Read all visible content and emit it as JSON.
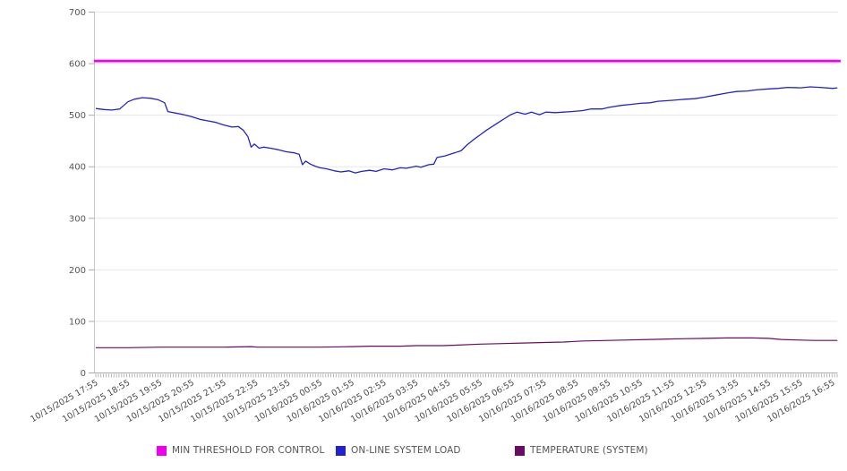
{
  "chart_data": {
    "type": "line",
    "title": "",
    "x_unit": "hours since 10/15/2025 17:55",
    "x_axis": {
      "tick_labels": [
        "10/15/2025 17:55",
        "10/15/2025 18:55",
        "10/15/2025 19:55",
        "10/15/2025 20:55",
        "10/15/2025 21:55",
        "10/15/2025 22:55",
        "10/15/2025 23:55",
        "10/16/2025 00:55",
        "10/16/2025 01:55",
        "10/16/2025 02:55",
        "10/16/2025 03:55",
        "10/16/2025 04:55",
        "10/16/2025 05:55",
        "10/16/2025 06:55",
        "10/16/2025 07:55",
        "10/16/2025 08:55",
        "10/16/2025 09:55",
        "10/16/2025 10:55",
        "10/16/2025 11:55",
        "10/16/2025 12:55",
        "10/16/2025 13:55",
        "10/16/2025 14:55",
        "10/16/2025 15:55",
        "10/16/2025 16:55"
      ]
    },
    "y_axis": {
      "min": 0,
      "max": 700,
      "tick_interval": 100,
      "tick_labels": [
        "0",
        "100",
        "200",
        "300",
        "400",
        "500",
        "600",
        "700"
      ]
    },
    "grid": "horizontal",
    "legend_position": "bottom",
    "series": [
      {
        "name": "MIN THRESHOLD FOR CONTROL",
        "color": "#EE00EE",
        "style": "threshold",
        "line_width": 2.4,
        "points": [
          [
            -0.06,
            605
          ],
          [
            23.25,
            605
          ]
        ]
      },
      {
        "name": "ON-LINE SYSTEM LOAD",
        "color": "#2323CC",
        "style": "line",
        "line_width": 1.3,
        "points": [
          [
            0,
            513
          ],
          [
            0.25,
            511
          ],
          [
            0.5,
            510
          ],
          [
            0.75,
            512
          ],
          [
            1,
            526
          ],
          [
            1.2,
            531
          ],
          [
            1.45,
            534
          ],
          [
            1.7,
            533
          ],
          [
            1.95,
            530
          ],
          [
            2.15,
            524
          ],
          [
            2.25,
            507
          ],
          [
            2.5,
            504
          ],
          [
            2.75,
            501
          ],
          [
            3,
            497
          ],
          [
            3.25,
            492
          ],
          [
            3.5,
            489
          ],
          [
            3.75,
            486
          ],
          [
            4,
            481
          ],
          [
            4.25,
            477
          ],
          [
            4.45,
            478
          ],
          [
            4.6,
            471
          ],
          [
            4.75,
            458
          ],
          [
            4.85,
            438
          ],
          [
            4.95,
            444
          ],
          [
            5.1,
            436
          ],
          [
            5.25,
            438
          ],
          [
            5.45,
            436
          ],
          [
            5.7,
            433
          ],
          [
            5.95,
            429
          ],
          [
            6.2,
            427
          ],
          [
            6.35,
            424
          ],
          [
            6.45,
            404
          ],
          [
            6.55,
            411
          ],
          [
            6.7,
            405
          ],
          [
            6.85,
            401
          ],
          [
            7,
            398
          ],
          [
            7.2,
            396
          ],
          [
            7.45,
            392
          ],
          [
            7.65,
            390
          ],
          [
            7.9,
            392
          ],
          [
            8.1,
            388
          ],
          [
            8.3,
            391
          ],
          [
            8.55,
            393
          ],
          [
            8.75,
            391
          ],
          [
            9,
            396
          ],
          [
            9.25,
            394
          ],
          [
            9.5,
            398
          ],
          [
            9.7,
            397
          ],
          [
            10,
            401
          ],
          [
            10.15,
            399
          ],
          [
            10.4,
            404
          ],
          [
            10.55,
            405
          ],
          [
            10.65,
            418
          ],
          [
            10.9,
            421
          ],
          [
            11.15,
            426
          ],
          [
            11.4,
            431
          ],
          [
            11.6,
            443
          ],
          [
            11.8,
            453
          ],
          [
            12,
            462
          ],
          [
            12.2,
            471
          ],
          [
            12.4,
            479
          ],
          [
            12.6,
            487
          ],
          [
            12.8,
            495
          ],
          [
            12.95,
            501
          ],
          [
            13.15,
            506
          ],
          [
            13.4,
            502
          ],
          [
            13.6,
            506
          ],
          [
            13.85,
            501
          ],
          [
            14.05,
            506
          ],
          [
            14.35,
            505
          ],
          [
            14.6,
            506
          ],
          [
            14.85,
            507
          ],
          [
            15.2,
            509
          ],
          [
            15.45,
            512
          ],
          [
            15.8,
            512
          ],
          [
            16,
            515
          ],
          [
            16.4,
            519
          ],
          [
            16.7,
            521
          ],
          [
            17,
            523
          ],
          [
            17.3,
            524
          ],
          [
            17.55,
            527
          ],
          [
            17.8,
            528
          ],
          [
            18,
            529
          ],
          [
            18.4,
            531
          ],
          [
            18.7,
            532
          ],
          [
            19,
            535
          ],
          [
            19.35,
            539
          ],
          [
            19.7,
            543
          ],
          [
            20,
            546
          ],
          [
            20.35,
            547
          ],
          [
            20.6,
            549
          ],
          [
            21,
            551
          ],
          [
            21.3,
            552
          ],
          [
            21.6,
            554
          ],
          [
            22,
            553
          ],
          [
            22.3,
            555
          ],
          [
            22.6,
            554
          ],
          [
            23,
            552
          ],
          [
            23.15,
            553
          ]
        ]
      },
      {
        "name": "TEMPERATURE (SYSTEM)",
        "color": "#6B0B63",
        "style": "line",
        "line_width": 1.2,
        "points": [
          [
            0,
            49
          ],
          [
            1,
            49
          ],
          [
            2,
            50
          ],
          [
            3,
            50
          ],
          [
            4,
            50
          ],
          [
            4.85,
            51
          ],
          [
            5.05,
            50
          ],
          [
            6,
            50
          ],
          [
            7,
            50
          ],
          [
            8,
            51
          ],
          [
            8.55,
            52
          ],
          [
            9.5,
            52
          ],
          [
            10,
            53
          ],
          [
            10.8,
            53
          ],
          [
            11.3,
            54
          ],
          [
            12,
            56
          ],
          [
            12.7,
            57
          ],
          [
            13.3,
            58
          ],
          [
            14,
            59
          ],
          [
            14.6,
            60
          ],
          [
            15.2,
            62
          ],
          [
            16,
            63
          ],
          [
            16.6,
            64
          ],
          [
            17.3,
            65
          ],
          [
            18,
            66
          ],
          [
            19,
            67
          ],
          [
            19.7,
            68
          ],
          [
            20.5,
            68
          ],
          [
            21,
            67
          ],
          [
            21.4,
            65
          ],
          [
            21.9,
            64
          ],
          [
            22.4,
            63
          ],
          [
            23.15,
            63
          ]
        ]
      }
    ]
  }
}
